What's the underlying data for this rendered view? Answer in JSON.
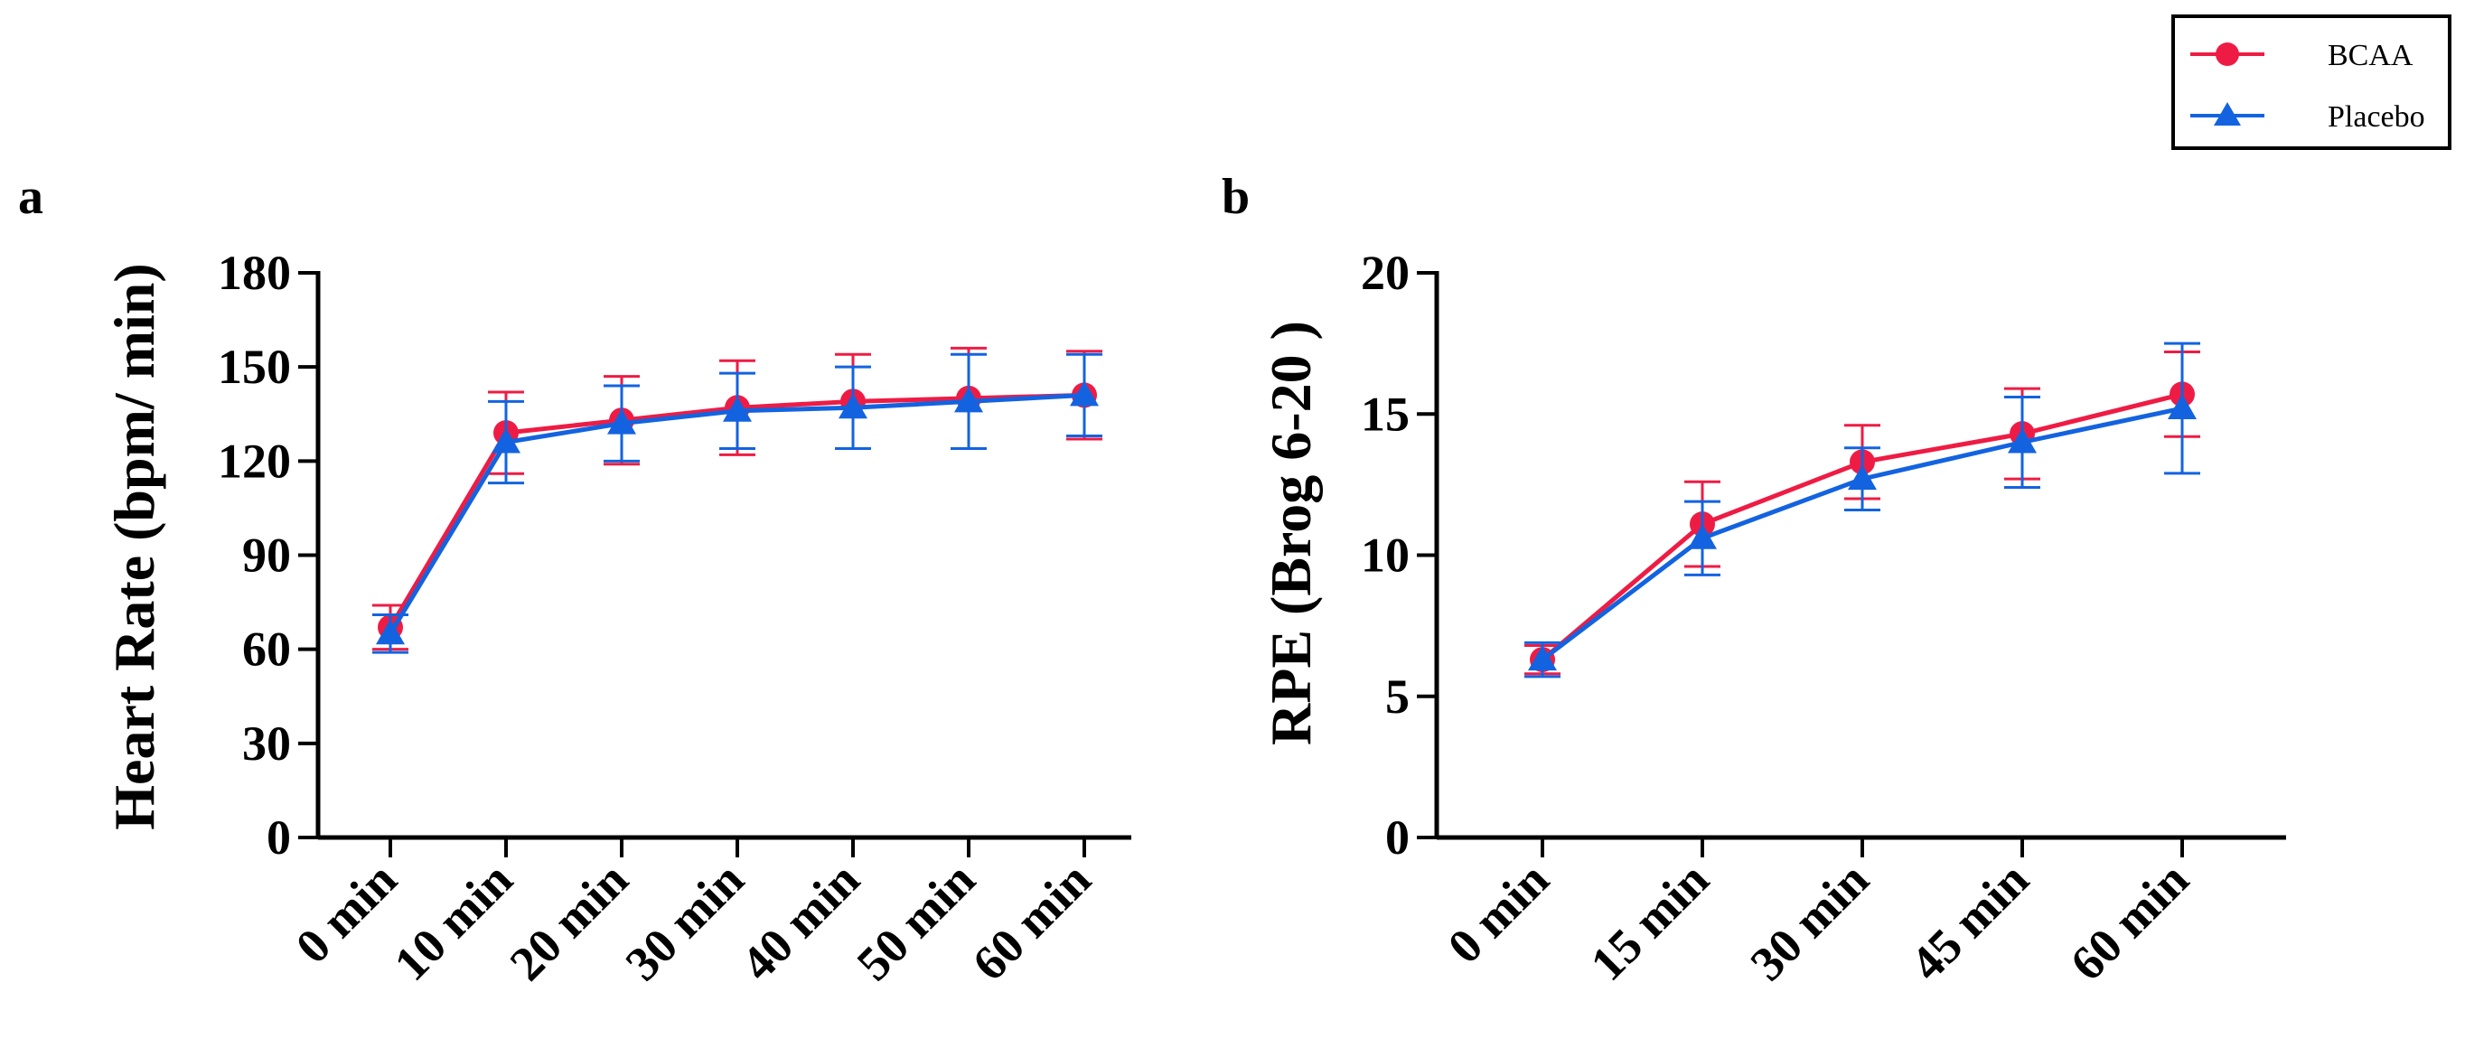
{
  "legend": {
    "entries": [
      {
        "name": "BCAA",
        "color": "#ee1c44",
        "marker": "circle"
      },
      {
        "name": "Placebo",
        "color": "#1363e0",
        "marker": "triangle"
      }
    ]
  },
  "chart_data": [
    {
      "panel": "a",
      "type": "line",
      "ylabel": "Heart Rate (bpm/ min)",
      "xlabel": "",
      "categories": [
        "0 min",
        "10 min",
        "20 min",
        "30 min",
        "40 min",
        "50 min",
        "60 min"
      ],
      "ylim": [
        0,
        180
      ],
      "yticks": [
        0,
        30,
        60,
        90,
        120,
        150,
        180
      ],
      "series": [
        {
          "name": "BCAA",
          "color": "#ee1c44",
          "marker": "circle",
          "values": [
            67,
            129,
            133,
            137,
            139,
            140,
            141
          ],
          "errors": [
            7,
            13,
            14,
            15,
            15,
            16,
            14
          ]
        },
        {
          "name": "Placebo",
          "color": "#1363e0",
          "marker": "triangle",
          "values": [
            65,
            126,
            132,
            136,
            137,
            139,
            141
          ],
          "errors": [
            6,
            13,
            12,
            12,
            13,
            15,
            13
          ]
        }
      ]
    },
    {
      "panel": "b",
      "type": "line",
      "ylabel": "RPE (Brog 6-20 )",
      "xlabel": "",
      "categories": [
        "0 min",
        "15 min",
        "30 min",
        "45 min",
        "60 min"
      ],
      "ylim": [
        0,
        20
      ],
      "yticks": [
        0,
        5,
        10,
        15,
        20
      ],
      "series": [
        {
          "name": "BCAA",
          "color": "#ee1c44",
          "marker": "circle",
          "values": [
            6.3,
            11.1,
            13.3,
            14.3,
            15.7
          ],
          "errors": [
            0.5,
            1.5,
            1.3,
            1.6,
            1.5
          ]
        },
        {
          "name": "Placebo",
          "color": "#1363e0",
          "marker": "triangle",
          "values": [
            6.3,
            10.6,
            12.7,
            14.0,
            15.2
          ],
          "errors": [
            0.6,
            1.3,
            1.1,
            1.6,
            2.3
          ]
        }
      ]
    }
  ]
}
